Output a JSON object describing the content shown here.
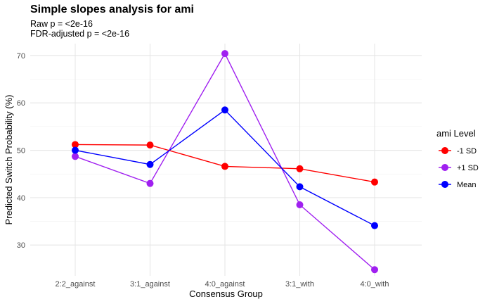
{
  "chart_data": {
    "type": "line",
    "title": "Simple slopes analysis for ami",
    "subtitle_lines": [
      "Raw p = <2e-16",
      "FDR-adjusted p = <2e-16"
    ],
    "xlabel": "Consensus Group",
    "ylabel": "Predicted Switch Probability (%)",
    "categories": [
      "2:2_against",
      "3:1_against",
      "4:0_against",
      "3:1_with",
      "4:0_with"
    ],
    "y_ticks": [
      30,
      40,
      50,
      60,
      70
    ],
    "ylim": [
      23.5,
      72.5
    ],
    "grid": true,
    "legend": {
      "title": "ami Level",
      "placement": "right"
    },
    "series": [
      {
        "name": "-1 SD",
        "color": "#ff0000",
        "values": [
          51.2,
          51.1,
          46.6,
          46.1,
          43.3
        ]
      },
      {
        "name": "+1 SD",
        "color": "#a020f0",
        "values": [
          48.7,
          43.0,
          70.4,
          38.5,
          24.8
        ]
      },
      {
        "name": "Mean",
        "color": "#0000ff",
        "values": [
          50.0,
          47.0,
          58.5,
          42.3,
          34.1
        ]
      }
    ]
  }
}
